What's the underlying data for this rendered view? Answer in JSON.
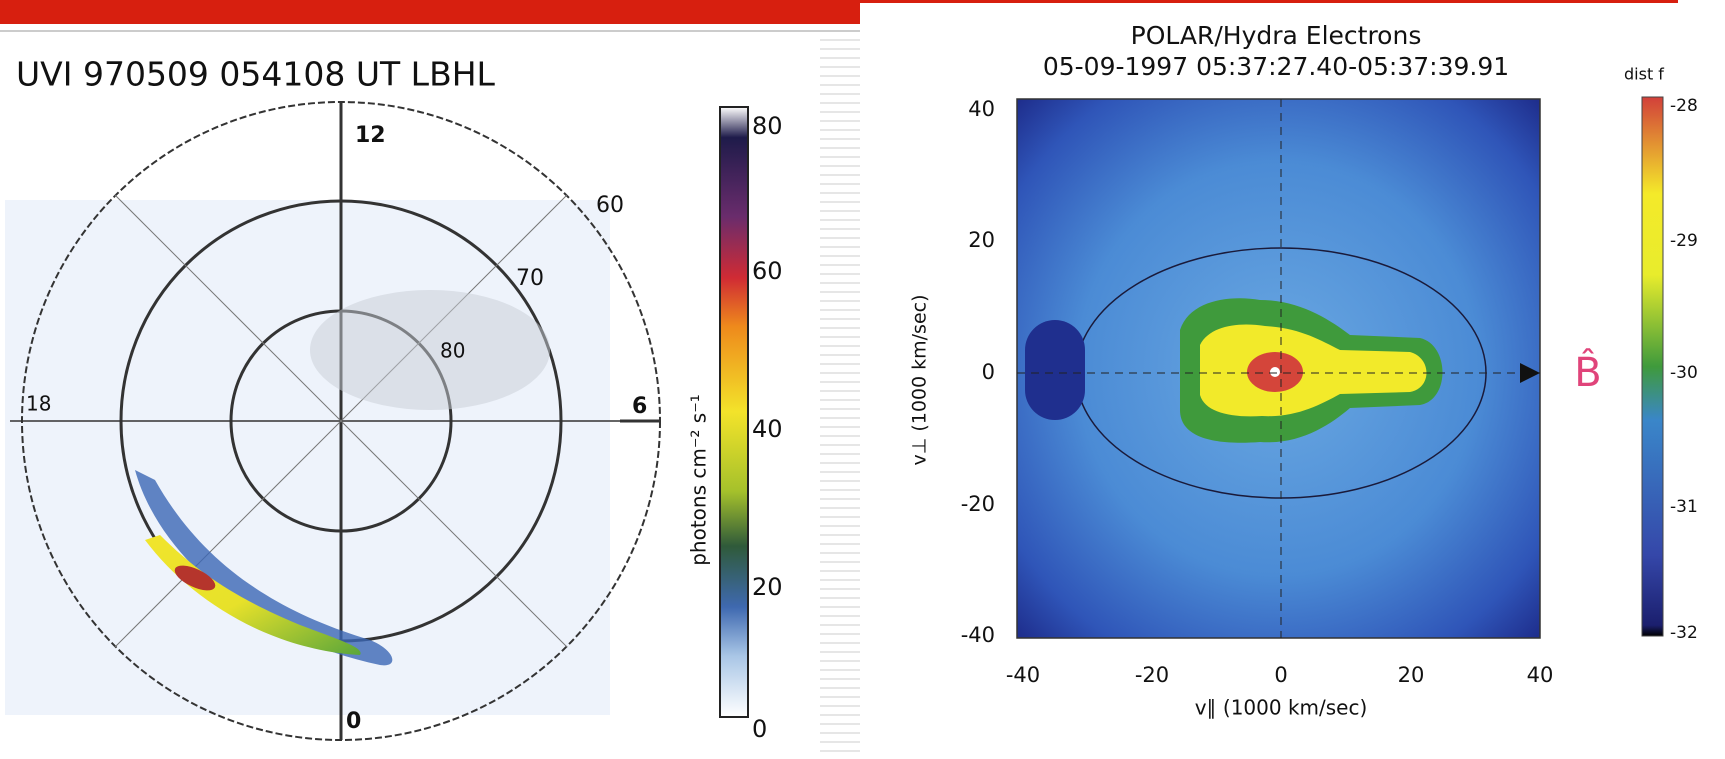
{
  "left_panel": {
    "title": "UVI 970509 054108 UT LBHL",
    "hour_labels": [
      "12",
      "18",
      "6",
      "0"
    ],
    "latitude_labels": [
      "60",
      "70",
      "80"
    ],
    "colorbar_label": "photons cm⁻² s⁻¹",
    "colorbar_ticks": [
      "80",
      "60",
      "40",
      "20",
      "0"
    ]
  },
  "right_panel": {
    "title": "POLAR/Hydra Electrons",
    "subtitle": "05-09-1997 05:37:27.40-05:37:39.91",
    "x_label": "v∥ (1000 km/sec)",
    "y_label": "v⊥ (1000 km/sec)",
    "x_ticks": [
      "-40",
      "-20",
      "0",
      "20",
      "40"
    ],
    "y_ticks": [
      "40",
      "20",
      "0",
      "-20",
      "-40"
    ],
    "colorbar_label": "dist f",
    "colorbar_ticks": [
      "-28",
      "-29",
      "-30",
      "-31",
      "-32"
    ],
    "field_label": "B̂"
  }
}
